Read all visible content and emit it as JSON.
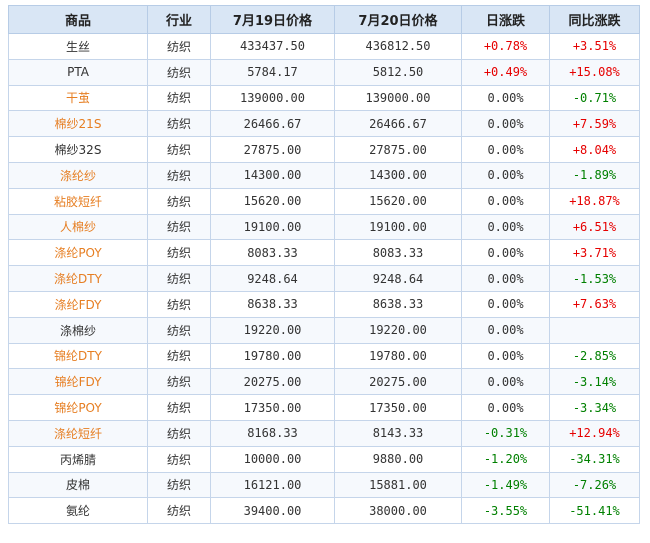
{
  "colors": {
    "up": "#e60000",
    "down": "#008000",
    "flat": "#333333",
    "link": "#e67e22",
    "header_bg": "#d9e6f5"
  },
  "headers": [
    "商品",
    "行业",
    "7月19日价格",
    "7月20日价格",
    "日涨跌",
    "同比涨跌"
  ],
  "rows": [
    {
      "name": "生丝",
      "link": false,
      "industry": "纺织",
      "price_0719": "433437.50",
      "price_0720": "436812.50",
      "daily": "+0.78%",
      "daily_dir": "up",
      "yoy": "+3.51%",
      "yoy_dir": "up"
    },
    {
      "name": "PTA",
      "link": false,
      "industry": "纺织",
      "price_0719": "5784.17",
      "price_0720": "5812.50",
      "daily": "+0.49%",
      "daily_dir": "up",
      "yoy": "+15.08%",
      "yoy_dir": "up"
    },
    {
      "name": "干茧",
      "link": true,
      "industry": "纺织",
      "price_0719": "139000.00",
      "price_0720": "139000.00",
      "daily": "0.00%",
      "daily_dir": "flat",
      "yoy": "-0.71%",
      "yoy_dir": "down"
    },
    {
      "name": "棉纱21S",
      "link": true,
      "industry": "纺织",
      "price_0719": "26466.67",
      "price_0720": "26466.67",
      "daily": "0.00%",
      "daily_dir": "flat",
      "yoy": "+7.59%",
      "yoy_dir": "up"
    },
    {
      "name": "棉纱32S",
      "link": false,
      "industry": "纺织",
      "price_0719": "27875.00",
      "price_0720": "27875.00",
      "daily": "0.00%",
      "daily_dir": "flat",
      "yoy": "+8.04%",
      "yoy_dir": "up"
    },
    {
      "name": "涤纶纱",
      "link": true,
      "industry": "纺织",
      "price_0719": "14300.00",
      "price_0720": "14300.00",
      "daily": "0.00%",
      "daily_dir": "flat",
      "yoy": "-1.89%",
      "yoy_dir": "down"
    },
    {
      "name": "粘胶短纤",
      "link": true,
      "industry": "纺织",
      "price_0719": "15620.00",
      "price_0720": "15620.00",
      "daily": "0.00%",
      "daily_dir": "flat",
      "yoy": "+18.87%",
      "yoy_dir": "up"
    },
    {
      "name": "人棉纱",
      "link": true,
      "industry": "纺织",
      "price_0719": "19100.00",
      "price_0720": "19100.00",
      "daily": "0.00%",
      "daily_dir": "flat",
      "yoy": "+6.51%",
      "yoy_dir": "up"
    },
    {
      "name": "涤纶POY",
      "link": true,
      "industry": "纺织",
      "price_0719": "8083.33",
      "price_0720": "8083.33",
      "daily": "0.00%",
      "daily_dir": "flat",
      "yoy": "+3.71%",
      "yoy_dir": "up"
    },
    {
      "name": "涤纶DTY",
      "link": true,
      "industry": "纺织",
      "price_0719": "9248.64",
      "price_0720": "9248.64",
      "daily": "0.00%",
      "daily_dir": "flat",
      "yoy": "-1.53%",
      "yoy_dir": "down"
    },
    {
      "name": "涤纶FDY",
      "link": true,
      "industry": "纺织",
      "price_0719": "8638.33",
      "price_0720": "8638.33",
      "daily": "0.00%",
      "daily_dir": "flat",
      "yoy": "+7.63%",
      "yoy_dir": "up"
    },
    {
      "name": "涤棉纱",
      "link": false,
      "industry": "纺织",
      "price_0719": "19220.00",
      "price_0720": "19220.00",
      "daily": "0.00%",
      "daily_dir": "flat",
      "yoy": "",
      "yoy_dir": "flat"
    },
    {
      "name": "锦纶DTY",
      "link": true,
      "industry": "纺织",
      "price_0719": "19780.00",
      "price_0720": "19780.00",
      "daily": "0.00%",
      "daily_dir": "flat",
      "yoy": "-2.85%",
      "yoy_dir": "down"
    },
    {
      "name": "锦纶FDY",
      "link": true,
      "industry": "纺织",
      "price_0719": "20275.00",
      "price_0720": "20275.00",
      "daily": "0.00%",
      "daily_dir": "flat",
      "yoy": "-3.14%",
      "yoy_dir": "down"
    },
    {
      "name": "锦纶POY",
      "link": true,
      "industry": "纺织",
      "price_0719": "17350.00",
      "price_0720": "17350.00",
      "daily": "0.00%",
      "daily_dir": "flat",
      "yoy": "-3.34%",
      "yoy_dir": "down"
    },
    {
      "name": "涤纶短纤",
      "link": true,
      "industry": "纺织",
      "price_0719": "8168.33",
      "price_0720": "8143.33",
      "daily": "-0.31%",
      "daily_dir": "down",
      "yoy": "+12.94%",
      "yoy_dir": "up"
    },
    {
      "name": "丙烯腈",
      "link": false,
      "industry": "纺织",
      "price_0719": "10000.00",
      "price_0720": "9880.00",
      "daily": "-1.20%",
      "daily_dir": "down",
      "yoy": "-34.31%",
      "yoy_dir": "down"
    },
    {
      "name": "皮棉",
      "link": false,
      "industry": "纺织",
      "price_0719": "16121.00",
      "price_0720": "15881.00",
      "daily": "-1.49%",
      "daily_dir": "down",
      "yoy": "-7.26%",
      "yoy_dir": "down"
    },
    {
      "name": "氨纶",
      "link": false,
      "industry": "纺织",
      "price_0719": "39400.00",
      "price_0720": "38000.00",
      "daily": "-3.55%",
      "daily_dir": "down",
      "yoy": "-51.41%",
      "yoy_dir": "down"
    }
  ]
}
